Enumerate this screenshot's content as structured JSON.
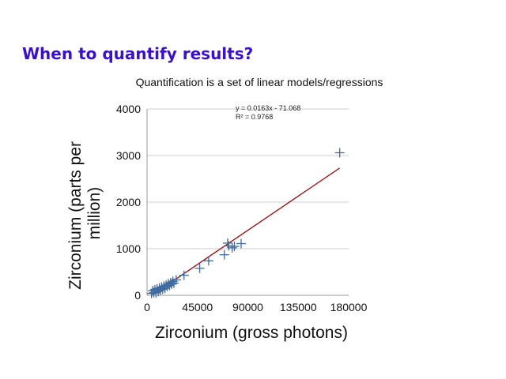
{
  "slide": {
    "title": "When to quantify results?",
    "subtitle": "Quantification is a set of linear models/regressions"
  },
  "colors": {
    "title": "#3a10c8",
    "marker": "#3f6aa0",
    "trendline": "#a01818",
    "grid": "#cfcfcf"
  },
  "chart_data": {
    "type": "scatter",
    "title": "",
    "xlabel": "Zirconium (gross photons)",
    "ylabel_lines": [
      "Zirconium (parts per",
      "million)"
    ],
    "xlim": [
      0,
      180000
    ],
    "ylim": [
      0,
      4000
    ],
    "xticks": [
      0,
      45000,
      90000,
      135000,
      180000
    ],
    "yticks": [
      0,
      1000,
      2000,
      3000,
      4000
    ],
    "grid": "horizontal",
    "marker": "plus",
    "trendline": {
      "slope": 0.0163,
      "intercept": -71.068,
      "x_range": [
        6000,
        172000
      ],
      "equation": "y = 0.0163x - 71.068",
      "r_squared": "R² = 0.9768"
    },
    "x": [
      4000,
      5000,
      6000,
      7000,
      8000,
      9000,
      10000,
      11000,
      12000,
      13000,
      14000,
      15000,
      16000,
      17000,
      18000,
      19000,
      20000,
      21000,
      22000,
      23000,
      24000,
      26000,
      33000,
      47000,
      55000,
      69000,
      72000,
      73000,
      76000,
      78000,
      84000,
      172000
    ],
    "y": [
      40,
      100,
      60,
      120,
      50,
      140,
      80,
      160,
      110,
      180,
      130,
      200,
      150,
      220,
      190,
      250,
      210,
      270,
      240,
      300,
      260,
      330,
      430,
      580,
      740,
      870,
      1120,
      1060,
      1020,
      1050,
      1110,
      3060
    ]
  }
}
